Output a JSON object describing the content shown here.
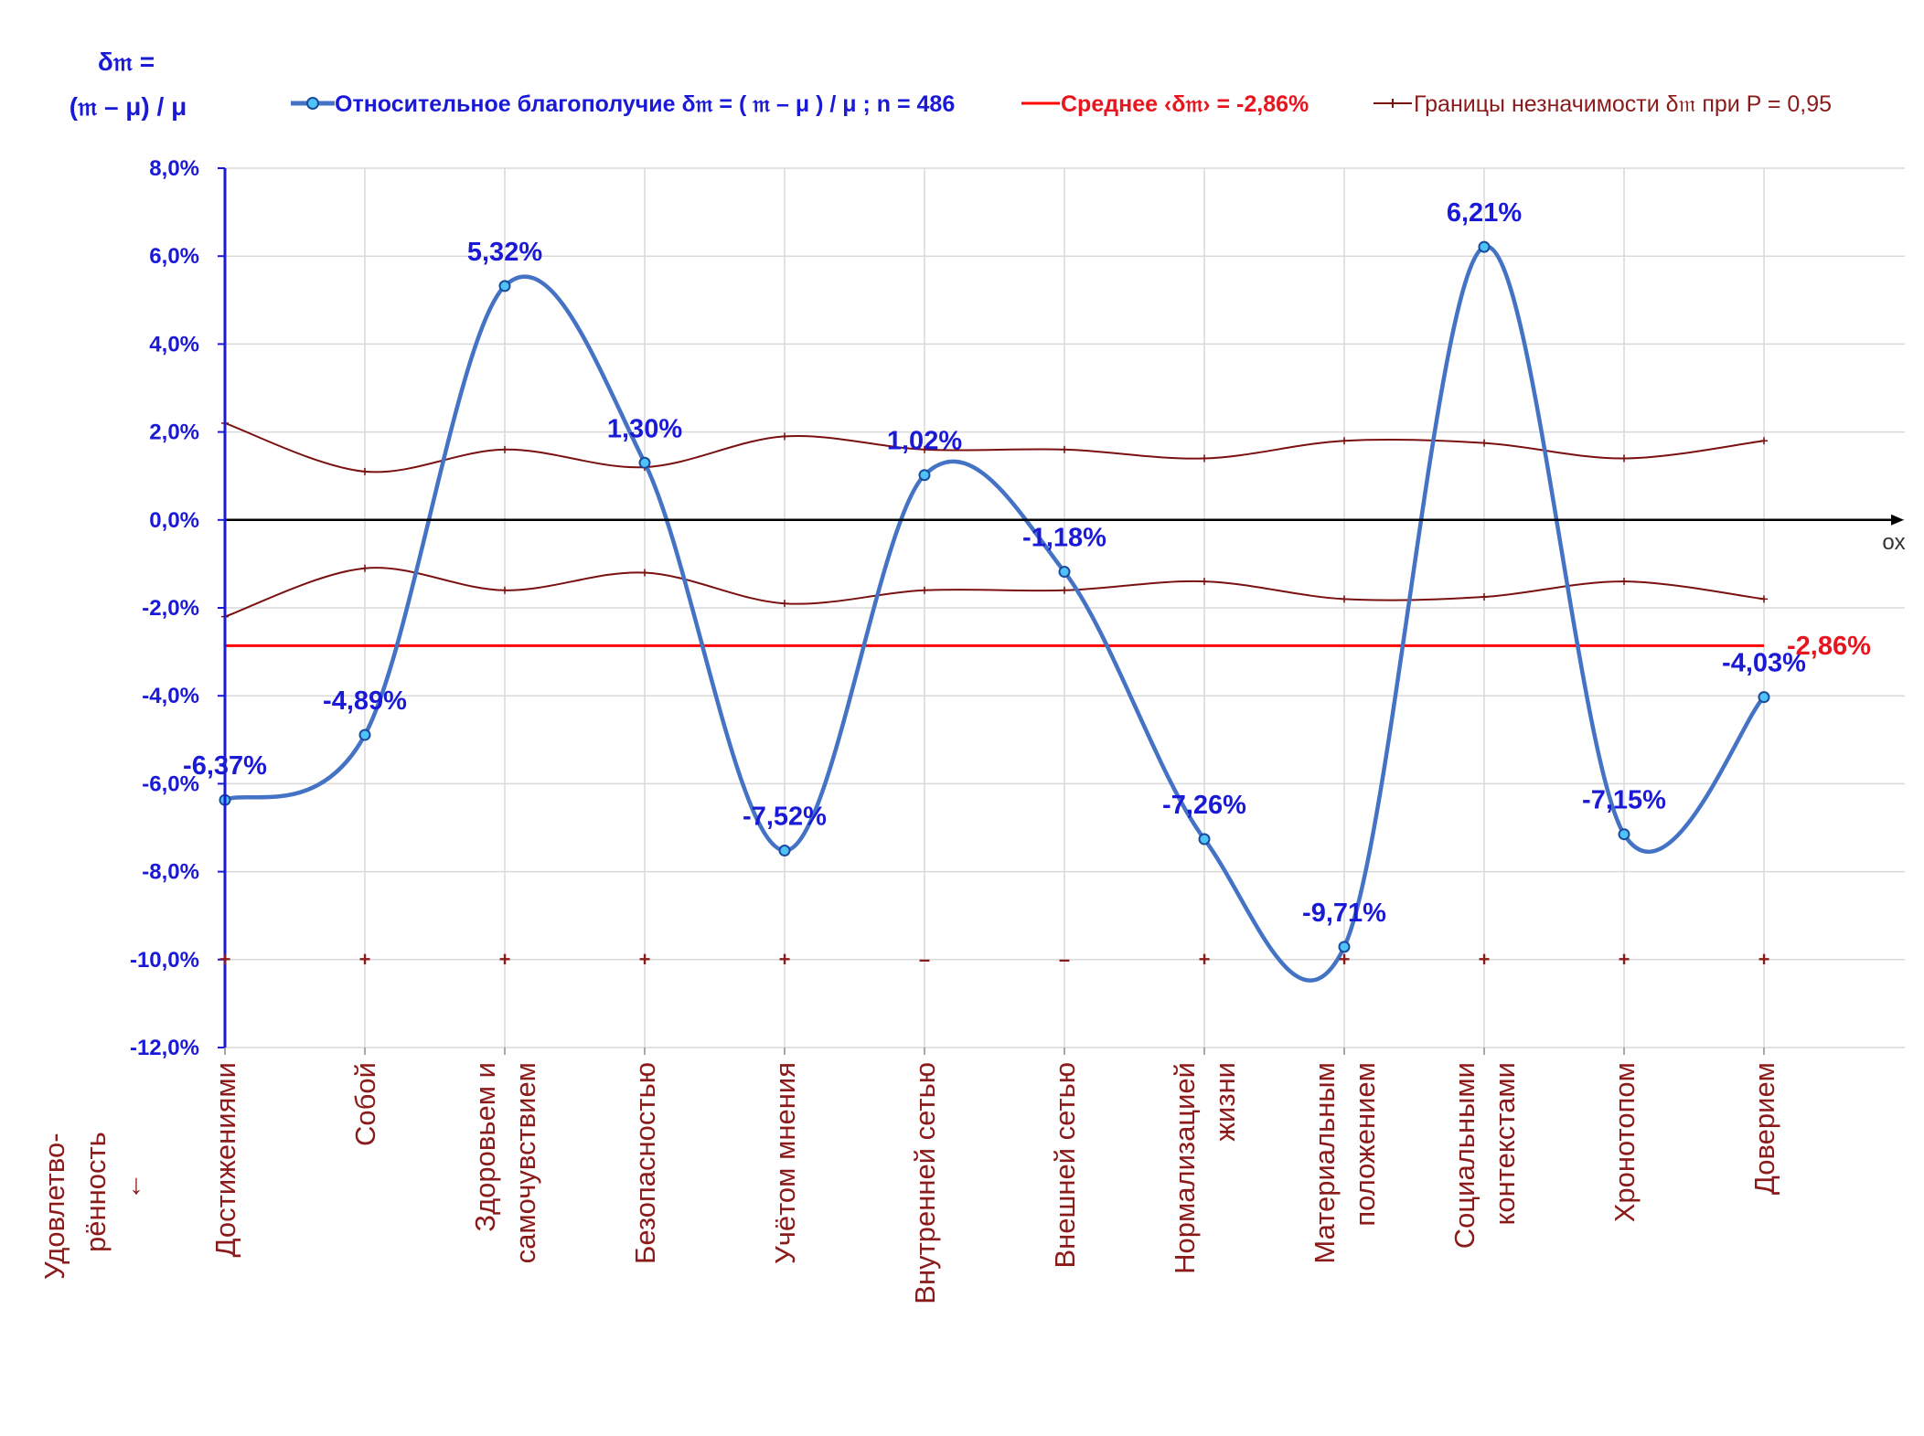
{
  "y_title_line1": "δ𝔪 =",
  "y_title_line2": "(𝔪 – μ) / μ",
  "legend": {
    "series": "Относительное благополучие δ𝔪 = ( 𝔪 – μ ) / μ ; n = 486",
    "mean": "Среднее ‹δ𝔪› = -2,86%",
    "bounds": "Границы незначимости δ𝔪 при P = 0,95"
  },
  "x_axis_title_line1": "Удовлетво-",
  "x_axis_title_line2": "рённость",
  "x_axis_title_arrow": "↓",
  "ox_label": "ox",
  "mean_label": "-2,86%",
  "colors": {
    "series": "#4472c4",
    "marker_fill": "#4fc3f7",
    "mean": "#ff0000",
    "bounds": "#7b1010",
    "axis_text": "#1a1ad6",
    "category_text": "#8b1a1a"
  },
  "chart_data": {
    "type": "line",
    "categories": [
      [
        "Достижениями"
      ],
      [
        "Собой"
      ],
      [
        "Здоровьем и",
        "самочувствием"
      ],
      [
        "Безопасностью"
      ],
      [
        "Учётом мнения"
      ],
      [
        "Внутренней сетью"
      ],
      [
        "Внешней сетью"
      ],
      [
        "Нормализацией",
        "жизни"
      ],
      [
        "Материальным",
        "положением"
      ],
      [
        "Социальными",
        "контекстами"
      ],
      [
        "Хронотопом"
      ],
      [
        "Доверием"
      ]
    ],
    "series": [
      {
        "name": "Относительное благополучие δ𝔪 = ( 𝔪 – μ ) / μ ; n = 486",
        "values": [
          -6.37,
          -4.89,
          5.32,
          1.3,
          -7.52,
          1.02,
          -1.18,
          -7.26,
          -9.71,
          6.21,
          -7.15,
          -4.03
        ],
        "labels": [
          "-6,37%",
          "-4,89%",
          "5,32%",
          "1,30%",
          "-7,52%",
          "1,02%",
          "-1,18%",
          "-7,26%",
          "-9,71%",
          "6,21%",
          "-7,15%",
          "-4,03%"
        ]
      },
      {
        "name": "Границы незначимости δ𝔪 при P = 0,95",
        "upper": [
          2.2,
          1.1,
          1.6,
          1.2,
          1.9,
          1.6,
          1.6,
          1.4,
          1.8,
          1.75,
          1.4,
          1.8
        ],
        "lower": [
          -2.2,
          -1.1,
          -1.6,
          -1.2,
          -1.9,
          -1.6,
          -1.6,
          -1.4,
          -1.8,
          -1.75,
          -1.4,
          -1.8
        ]
      }
    ],
    "mean": -2.86,
    "significance_marks": [
      "+",
      "+",
      "+",
      "+",
      "+",
      "–",
      "–",
      "+",
      "+",
      "+",
      "+",
      "+"
    ],
    "y_ticks": [
      "8,0%",
      "6,0%",
      "4,0%",
      "2,0%",
      "0,0%",
      "-2,0%",
      "-4,0%",
      "-6,0%",
      "-8,0%",
      "-10,0%",
      "-12,0%"
    ],
    "ylim": [
      -12,
      8
    ],
    "ystep": 2,
    "grid": true,
    "legend_position": "top"
  }
}
